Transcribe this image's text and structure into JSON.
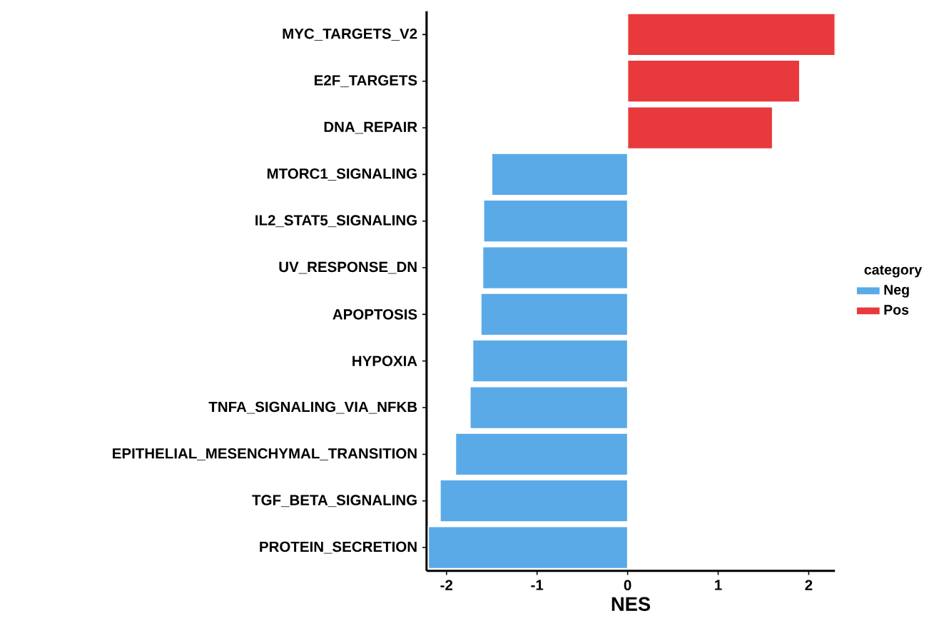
{
  "chart_data": {
    "type": "bar",
    "orientation": "horizontal",
    "xlabel": "NES",
    "legend_title": "category",
    "legend": "right",
    "grid": false,
    "categories": [
      "MYC_TARGETS_V2",
      "E2F_TARGETS",
      "DNA_REPAIR",
      "MTORC1_SIGNALING",
      "IL2_STAT5_SIGNALING",
      "UV_RESPONSE_DN",
      "APOPTOSIS",
      "HYPOXIA",
      "TNFA_SIGNALING_VIA_NFKB",
      "EPITHELIAL_MESENCHYMAL_TRANSITION",
      "TGF_BETA_SIGNALING",
      "PROTEIN_SECRETION"
    ],
    "series": [
      {
        "name": "Neg",
        "color": "#5aaae8",
        "values": [
          null,
          null,
          null,
          -1.5,
          -1.59,
          -1.6,
          -1.62,
          -1.71,
          -1.74,
          -1.9,
          -2.07,
          -2.2
        ]
      },
      {
        "name": "Pos",
        "color": "#e8393d",
        "values": [
          2.29,
          1.9,
          1.6,
          null,
          null,
          null,
          null,
          null,
          null,
          null,
          null,
          null
        ]
      }
    ],
    "xlim": [
      -2.22,
      2.29
    ],
    "xticks": [
      -2,
      -1,
      0,
      1,
      2
    ]
  }
}
